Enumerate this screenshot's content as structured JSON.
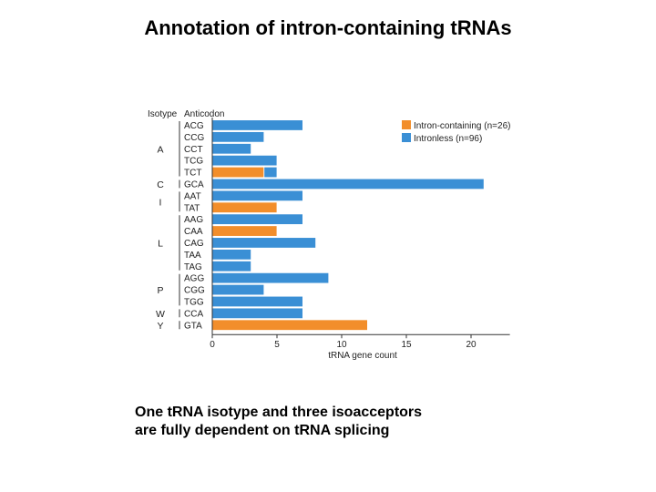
{
  "slide": {
    "title": "Annotation of intron-containing tRNAs",
    "caption_line1": "One tRNA isotype and three isoacceptors",
    "caption_line2": "are fully dependent on tRNA splicing"
  },
  "chart_data": {
    "type": "bar",
    "orientation": "horizontal",
    "stacked": true,
    "xlabel": "tRNA gene count",
    "xlim": [
      0,
      23
    ],
    "xticks": [
      0,
      5,
      10,
      15,
      20
    ],
    "header_isotype": "Isotype",
    "header_anticodon": "Anticodon",
    "categories": [
      "ACG",
      "CCG",
      "CCT",
      "TCG",
      "TCT",
      "GCA",
      "AAT",
      "TAT",
      "AAG",
      "CAA",
      "CAG",
      "TAA",
      "TAG",
      "AGG",
      "CGG",
      "TGG",
      "CCA",
      "GTA"
    ],
    "groups": [
      {
        "isotype": "A",
        "from": 0,
        "to": 4
      },
      {
        "isotype": "C",
        "from": 5,
        "to": 5
      },
      {
        "isotype": "I",
        "from": 6,
        "to": 7
      },
      {
        "isotype": "L",
        "from": 8,
        "to": 12
      },
      {
        "isotype": "P",
        "from": 13,
        "to": 15
      },
      {
        "isotype": "W",
        "from": 16,
        "to": 16
      },
      {
        "isotype": "Y",
        "from": 17,
        "to": 17
      }
    ],
    "series": [
      {
        "name": "Intron-containing (n=26)",
        "color": "#f28e2b",
        "values": [
          0,
          0,
          0,
          0,
          4,
          0,
          0,
          5,
          0,
          5,
          0,
          0,
          0,
          0,
          0,
          0,
          0,
          12
        ]
      },
      {
        "name": "Intronless (n=96)",
        "color": "#3a8fd5",
        "values": [
          7,
          4,
          3,
          5,
          1,
          21,
          7,
          0,
          7,
          0,
          8,
          3,
          3,
          9,
          4,
          7,
          7,
          0
        ]
      }
    ],
    "legend_position": "top-right",
    "grid": false
  }
}
